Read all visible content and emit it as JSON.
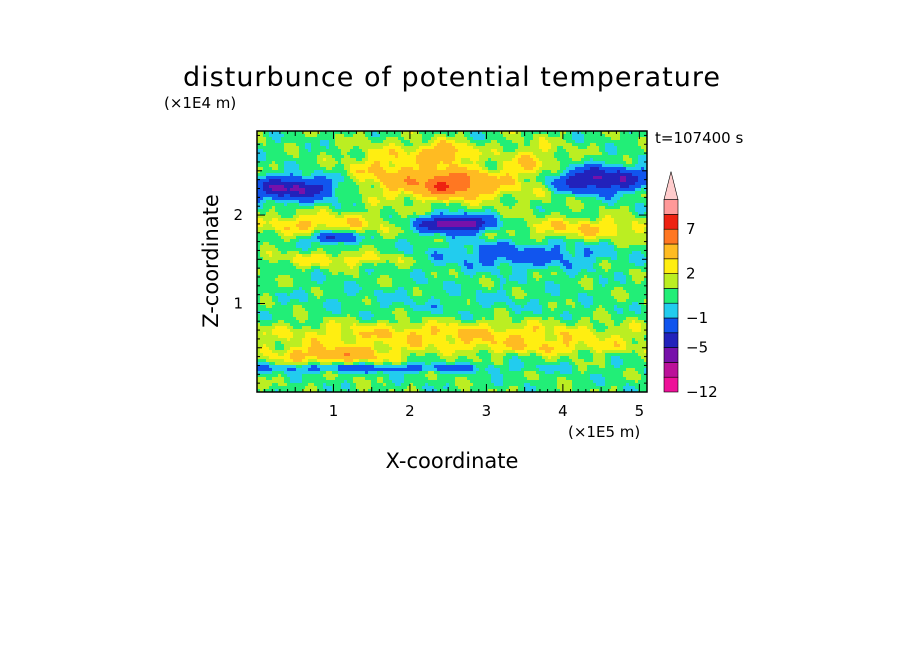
{
  "chart_data": {
    "type": "heatmap",
    "title": "disturbunce of potential temperature",
    "xlabel": "X-coordinate",
    "ylabel": "Z-coordinate",
    "x_unit": "(×1E5 m)",
    "y_unit": "(×1E4 m)",
    "time_label": "t=107400 s",
    "xlim": [
      0,
      5.1
    ],
    "ylim": [
      0,
      2.95
    ],
    "x_ticks": [
      {
        "value": 1,
        "label": "1"
      },
      {
        "value": 2,
        "label": "2"
      },
      {
        "value": 3,
        "label": "3"
      },
      {
        "value": 4,
        "label": "4"
      },
      {
        "value": 5,
        "label": "5"
      }
    ],
    "y_ticks": [
      {
        "value": 1,
        "label": "1"
      },
      {
        "value": 2,
        "label": "2"
      }
    ],
    "colorbar": {
      "levels": [
        -12,
        -10,
        -7,
        -5,
        -3,
        -1,
        0,
        1,
        2,
        3,
        5,
        7,
        9,
        11
      ],
      "colors": [
        "#ee1199",
        "#bb1199",
        "#7711aa",
        "#2222bb",
        "#1155ee",
        "#22ccee",
        "#22ee77",
        "#bbee22",
        "#ffee11",
        "#ffbb22",
        "#ff7722",
        "#ee2211",
        "#ff9999",
        "#ffcccc"
      ],
      "labels": [
        {
          "value": 7,
          "label": "7"
        },
        {
          "value": 2,
          "label": "2"
        },
        {
          "value": -1,
          "label": "−1"
        },
        {
          "value": -5,
          "label": "−5"
        },
        {
          "value": -12,
          "label": "−12"
        }
      ],
      "extend": "max"
    },
    "features": [
      {
        "x": 0.45,
        "z": 2.3,
        "sx": 0.55,
        "sz": 0.13,
        "amp": -6
      },
      {
        "x": 4.45,
        "z": 2.4,
        "sx": 0.7,
        "sz": 0.14,
        "amp": -6
      },
      {
        "x": 2.6,
        "z": 1.9,
        "sx": 0.45,
        "sz": 0.09,
        "amp": -8
      },
      {
        "x": 2.55,
        "z": 2.35,
        "sx": 0.55,
        "sz": 0.16,
        "amp": 6.5
      },
      {
        "x": 2.45,
        "z": 2.7,
        "sx": 0.35,
        "sz": 0.12,
        "amp": 4
      },
      {
        "x": 1.7,
        "z": 2.5,
        "sx": 0.5,
        "sz": 0.3,
        "amp": 2.5
      },
      {
        "x": 3.6,
        "z": 2.5,
        "sx": 0.45,
        "sz": 0.3,
        "amp": 2.5
      },
      {
        "x": 0.8,
        "z": 1.9,
        "sx": 0.9,
        "sz": 0.12,
        "amp": 2.5
      },
      {
        "x": 4.3,
        "z": 1.85,
        "sx": 0.9,
        "sz": 0.12,
        "amp": 2.5
      },
      {
        "x": 1.0,
        "z": 1.75,
        "sx": 0.25,
        "sz": 0.07,
        "amp": -5
      },
      {
        "x": 3.4,
        "z": 1.55,
        "sx": 1.1,
        "sz": 0.15,
        "amp": -2.5
      },
      {
        "x": 1.1,
        "z": 1.5,
        "sx": 0.9,
        "sz": 0.08,
        "amp": 2
      },
      {
        "x": 2.2,
        "z": 1.0,
        "sx": 2.0,
        "sz": 0.25,
        "amp": -0.5
      },
      {
        "x": 2.5,
        "z": 0.65,
        "sx": 2.6,
        "sz": 0.15,
        "amp": 2.5
      },
      {
        "x": 1.0,
        "z": 0.42,
        "sx": 0.8,
        "sz": 0.1,
        "amp": 3.5
      },
      {
        "x": 1.5,
        "z": 0.27,
        "sx": 1.8,
        "sz": 0.05,
        "amp": -2.5
      },
      {
        "x": 3.8,
        "z": 0.5,
        "sx": 1.2,
        "sz": 0.08,
        "amp": 1.5
      }
    ]
  }
}
